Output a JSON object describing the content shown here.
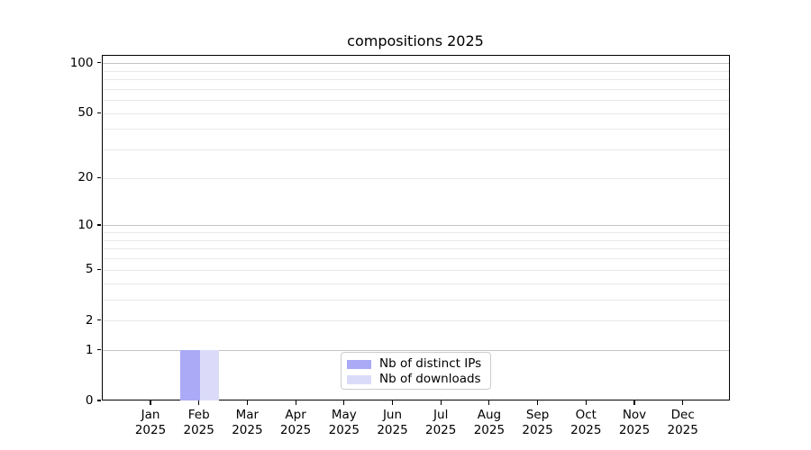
{
  "chart_data": {
    "type": "bar",
    "title": "compositions 2025",
    "categories": [
      {
        "month": "Jan",
        "year": "2025"
      },
      {
        "month": "Feb",
        "year": "2025"
      },
      {
        "month": "Mar",
        "year": "2025"
      },
      {
        "month": "Apr",
        "year": "2025"
      },
      {
        "month": "May",
        "year": "2025"
      },
      {
        "month": "Jun",
        "year": "2025"
      },
      {
        "month": "Jul",
        "year": "2025"
      },
      {
        "month": "Aug",
        "year": "2025"
      },
      {
        "month": "Sep",
        "year": "2025"
      },
      {
        "month": "Oct",
        "year": "2025"
      },
      {
        "month": "Nov",
        "year": "2025"
      },
      {
        "month": "Dec",
        "year": "2025"
      }
    ],
    "series": [
      {
        "name": "Nb of distinct IPs",
        "color": "#aaaaf6",
        "values": [
          0,
          1,
          0,
          0,
          0,
          0,
          0,
          0,
          0,
          0,
          0,
          0
        ]
      },
      {
        "name": "Nb of downloads",
        "color": "#dbdbf9",
        "values": [
          0,
          1,
          0,
          0,
          0,
          0,
          0,
          0,
          0,
          0,
          0,
          0
        ]
      }
    ],
    "y_axis": {
      "scale": "log10(1+y)",
      "tick_values": [
        0,
        1,
        2,
        5,
        10,
        20,
        50,
        100
      ],
      "major_gridlines": [
        1,
        10,
        100
      ],
      "minor_gridlines": [
        2,
        3,
        4,
        5,
        6,
        7,
        8,
        9,
        20,
        30,
        40,
        50,
        60,
        70,
        80,
        90
      ],
      "min": 0,
      "max": 112
    },
    "grid": true,
    "legend": {
      "position": "bottom-center",
      "entries": [
        "Nb of distinct IPs",
        "Nb of downloads"
      ]
    },
    "colors": {
      "major_grid": "#c4c4c4",
      "minor_grid": "#e9e9e9",
      "axis": "#000000",
      "legend_border": "#cccccc",
      "text": "#000000"
    }
  }
}
